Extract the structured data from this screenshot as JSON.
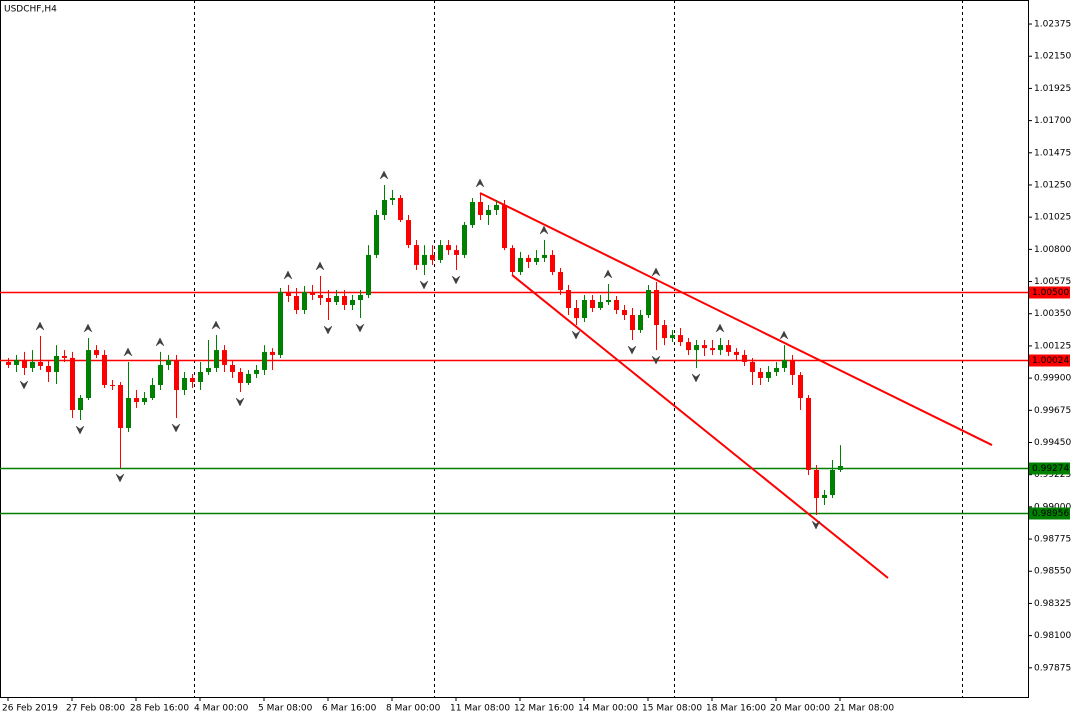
{
  "chart_data": {
    "type": "candlestick",
    "title": "USDCHF,H4",
    "x": [
      "26 Feb 2019",
      null,
      null,
      null,
      null,
      null,
      null,
      null,
      "27 Feb 08:00",
      null,
      null,
      null,
      null,
      null,
      null,
      null,
      "28 Feb 16:00",
      null,
      null,
      null,
      null,
      null,
      null,
      null,
      "4 Mar 00:00",
      null,
      null,
      null,
      null,
      null,
      null,
      null,
      "5 Mar 08:00",
      null,
      null,
      null,
      null,
      null,
      null,
      null,
      "6 Mar 16:00",
      null,
      null,
      null,
      null,
      null,
      null,
      null,
      "8 Mar 00:00",
      null,
      null,
      null,
      null,
      null,
      null,
      null,
      "11 Mar 08:00",
      null,
      null,
      null,
      null,
      null,
      null,
      null,
      "12 Mar 16:00",
      null,
      null,
      null,
      null,
      null,
      null,
      null,
      "14 Mar 00:00",
      null,
      null,
      null,
      null,
      null,
      null,
      null,
      "15 Mar 08:00",
      null,
      null,
      null,
      null,
      null,
      null,
      null,
      "18 Mar 16:00",
      null,
      null,
      null,
      null,
      null,
      null,
      null,
      "20 Mar 00:00",
      null,
      null,
      null,
      null,
      null,
      null,
      null,
      "21 Mar 08:00"
    ],
    "open": [
      1.00013,
      0.99992,
      1.00027,
      0.99971,
      1.00013,
      0.99985,
      0.99943,
      1.00055,
      1.00041,
      0.99677,
      0.99761,
      1.00096,
      1.00062,
      0.99852,
      0.99852,
      0.99551,
      0.99761,
      0.99733,
      0.99761,
      0.99852,
      0.99992,
      1.00027,
      0.99817,
      0.99901,
      0.99873,
      0.99943,
      0.99971,
      1.00096,
      0.99992,
      0.99943,
      0.99866,
      0.99929,
      0.99957,
      1.00083,
      1.00062,
      1.00502,
      1.00474,
      1.00376,
      1.00502,
      1.00481,
      1.0046,
      1.00432,
      1.00474,
      1.00411,
      1.00446,
      1.00481,
      1.00761,
      1.0104,
      1.01145,
      1.01159,
      1.01005,
      1.0083,
      1.00691,
      1.00761,
      1.00726,
      1.0083,
      1.00795,
      1.00761,
      1.0097,
      1.01131,
      1.0104,
      1.01075,
      1.0111,
      1.00809,
      1.00642,
      1.0074,
      1.00712,
      1.0074,
      1.00761,
      1.00642,
      1.00516,
      1.0039,
      1.0032,
      1.00446,
      1.0039,
      1.00432,
      1.00446,
      1.00376,
      1.00341,
      1.00236,
      1.00341,
      1.00516,
      1.00271,
      1.0018,
      1.00201,
      1.00152,
      1.00096,
      1.00131,
      1.0011,
      1.00096,
      1.00131,
      1.00083,
      1.00062,
      1.00013,
      0.99943,
      0.99901,
      0.99943,
      0.99971,
      1.00027,
      0.99922,
      0.99761,
      0.99258,
      0.99062,
      0.99083,
      0.99258
    ],
    "high": [
      1.00041,
      1.00062,
      1.00083,
      1.00096,
      1.00194,
      1.00027,
      1.00131,
      1.00096,
      1.00083,
      0.99782,
      1.0018,
      1.00131,
      1.00096,
      0.99887,
      0.99873,
      1.00013,
      0.99817,
      0.99803,
      0.99901,
      1.00083,
      1.00062,
      1.00062,
      0.99943,
      0.99929,
      1.00013,
      1.00166,
      1.00201,
      1.00131,
      1.00027,
      0.99971,
      0.99957,
      0.99992,
      1.00131,
      1.0011,
      1.0053,
      1.00551,
      1.0053,
      1.00544,
      1.00551,
      1.00614,
      1.00516,
      1.00516,
      1.00516,
      1.00481,
      1.00516,
      1.0083,
      1.01075,
      1.0125,
      1.01215,
      1.0118,
      1.0104,
      1.00865,
      1.0083,
      1.0083,
      1.00865,
      1.00865,
      1.0083,
      1.00991,
      1.01159,
      1.01194,
      1.0111,
      1.01145,
      1.01145,
      1.0083,
      1.00782,
      1.00761,
      1.00795,
      1.00865,
      1.00795,
      1.0067,
      1.00551,
      1.00446,
      1.00481,
      1.00481,
      1.00481,
      1.00558,
      1.00474,
      1.00411,
      1.0039,
      1.00376,
      1.00551,
      1.00572,
      1.00306,
      1.00236,
      1.0025,
      1.0018,
      1.00166,
      1.00166,
      1.00166,
      1.0018,
      1.00166,
      1.0011,
      1.00096,
      1.00041,
      0.99971,
      0.99985,
      1.00013,
      1.00131,
      1.00062,
      0.99943,
      0.99782,
      0.99293,
      0.99118,
      0.99328,
      0.99432
    ],
    "low": [
      0.99971,
      0.99943,
      0.99922,
      0.99943,
      0.99957,
      0.99873,
      0.99859,
      1.00013,
      0.99621,
      0.99607,
      0.99747,
      1.00041,
      0.99831,
      0.99817,
      0.99272,
      0.99523,
      0.99691,
      0.99712,
      0.99747,
      0.99817,
      0.99957,
      0.99621,
      0.99782,
      0.99831,
      0.99817,
      0.99922,
      0.99943,
      0.99943,
      0.99901,
      0.99803,
      0.99852,
      0.99901,
      0.99922,
      0.99957,
      1.00041,
      1.00432,
      1.00348,
      1.00348,
      1.00446,
      1.00411,
      1.00306,
      1.00411,
      1.00376,
      1.00376,
      1.0032,
      1.0046,
      1.0074,
      1.01005,
      1.0111,
      1.00991,
      1.00809,
      1.00656,
      1.00621,
      1.00691,
      1.00705,
      1.00761,
      1.00656,
      1.0074,
      1.00949,
      1.01005,
      1.0097,
      1.0104,
      1.00795,
      1.00621,
      1.00621,
      1.0067,
      1.00691,
      1.00712,
      1.00621,
      1.00481,
      1.00341,
      1.00271,
      1.00292,
      1.00362,
      1.00376,
      1.00411,
      1.00348,
      1.00306,
      1.00166,
      1.00215,
      1.0032,
      1.00096,
      1.00131,
      1.00152,
      1.00124,
      1.00062,
      0.99971,
      1.00055,
      1.00062,
      1.00062,
      1.00055,
      1.00027,
      0.99985,
      0.99852,
      0.99852,
      0.99873,
      0.99915,
      0.99943,
      0.99852,
      0.99677,
      0.99223,
      0.98943,
      0.99013,
      0.99062,
      0.99244
    ],
    "close": [
      0.99992,
      1.00027,
      0.99971,
      1.00013,
      0.99985,
      0.99943,
      1.00055,
      1.00041,
      0.99677,
      0.99761,
      1.00096,
      1.00062,
      0.99852,
      0.99845,
      0.99551,
      0.99761,
      0.99733,
      0.99761,
      0.99852,
      0.99992,
      1.00027,
      0.99817,
      0.99901,
      0.99873,
      0.99943,
      0.99971,
      1.00096,
      0.99992,
      0.99943,
      0.99866,
      0.99929,
      0.99957,
      1.00083,
      1.00062,
      1.00502,
      1.00474,
      1.00376,
      1.00502,
      1.00481,
      1.0046,
      1.00432,
      1.00474,
      1.00411,
      1.00446,
      1.00481,
      1.00761,
      1.0104,
      1.01145,
      1.01159,
      1.01005,
      1.0083,
      1.00691,
      1.00761,
      1.00726,
      1.0083,
      1.00795,
      1.00761,
      1.0097,
      1.01131,
      1.0104,
      1.01075,
      1.0111,
      1.00809,
      1.00642,
      1.0074,
      1.00712,
      1.0074,
      1.00761,
      1.00642,
      1.00516,
      1.0039,
      1.0032,
      1.00446,
      1.0039,
      1.00432,
      1.00446,
      1.00376,
      1.00341,
      1.00236,
      1.00341,
      1.00516,
      1.00271,
      1.0018,
      1.00201,
      1.00152,
      1.00096,
      1.00131,
      1.0011,
      1.00096,
      1.00131,
      1.00083,
      1.00062,
      1.00013,
      0.99943,
      0.99901,
      0.99943,
      0.99971,
      1.00027,
      0.99922,
      0.99761,
      0.99258,
      0.99062,
      0.99083,
      0.99258,
      0.99286
    ],
    "up_color": "#008000",
    "down_color": "#ff0000",
    "xlim": [
      -1,
      127.5
    ],
    "xgrid": [
      24,
      54,
      84,
      120
    ],
    "ylim": [
      0.97671,
      1.02543
    ],
    "yticks": [
      1.02375,
      {
        "value": 1.0215,
        "label": "1.02150"
      },
      1.01925,
      {
        "value": 1.017,
        "label": "1.01700"
      },
      1.01475,
      {
        "value": 1.0125,
        "label": "1.01250"
      },
      1.01025,
      {
        "value": 1.008,
        "label": "1.00800"
      },
      1.00575,
      {
        "value": 1.0035,
        "label": "1.00350"
      },
      1.00125,
      {
        "value": 0.999,
        "label": "0.99900"
      },
      0.99675,
      {
        "value": 0.9945,
        "label": "0.99450"
      },
      0.99225,
      {
        "value": 0.99,
        "label": "0.99000"
      },
      0.98775,
      {
        "value": 0.9855,
        "label": "0.98550"
      },
      0.98325,
      {
        "value": 0.981,
        "label": "0.98100"
      },
      0.97875
    ],
    "levels": [
      {
        "value": 1.005,
        "label": "1.00500",
        "color": "#ff0000"
      },
      {
        "value": 1.00024,
        "label": "1.00024",
        "color": "#ff0000"
      },
      {
        "value": 0.99274,
        "label": "0.99274",
        "color": "#008000"
      },
      {
        "value": 0.98956,
        "label": "0.98956",
        "color": "#008000"
      }
    ],
    "trendlines": [
      {
        "points": [
          [
            59,
            1.01194
          ],
          [
            123,
            0.99432
          ]
        ],
        "color": "#ff0000"
      },
      {
        "points": [
          [
            63,
            1.00621
          ],
          [
            110,
            0.98503
          ]
        ],
        "color": "#ff0000"
      }
    ],
    "fractals": true
  }
}
